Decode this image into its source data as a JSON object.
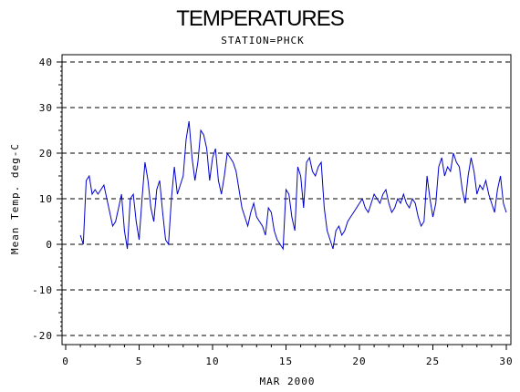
{
  "chart_data": {
    "type": "line",
    "title": "TEMPERATURES",
    "subtitle": "STATION=PHCK",
    "xlabel": "MAR 2000",
    "ylabel": "Mean Temp. deg-C",
    "xlim": [
      0,
      30
    ],
    "ylim": [
      -21,
      41
    ],
    "xticks": [
      0,
      5,
      10,
      15,
      20,
      25,
      30
    ],
    "yticks": [
      -20,
      -10,
      0,
      10,
      20,
      30,
      40
    ],
    "grid": "horizontal dashed",
    "line_color": "#0000cc",
    "series": [
      {
        "x": [
          1.0,
          1.2,
          1.4,
          1.6,
          1.8,
          2.0,
          2.2,
          2.4,
          2.6,
          2.8,
          3.0,
          3.2,
          3.4,
          3.6,
          3.8,
          4.0,
          4.2,
          4.4,
          4.6,
          4.8,
          5.0,
          5.2,
          5.4,
          5.6,
          5.8,
          6.0,
          6.2,
          6.4,
          6.6,
          6.8,
          7.0,
          7.2,
          7.4,
          7.6,
          7.8,
          8.0,
          8.2,
          8.4,
          8.6,
          8.8,
          9.0,
          9.2,
          9.4,
          9.6,
          9.8,
          10.0,
          10.2,
          10.4,
          10.6,
          10.8,
          11.0,
          11.2,
          11.4,
          11.6,
          11.8,
          12.0,
          12.2,
          12.4,
          12.6,
          12.8,
          13.0,
          13.2,
          13.4,
          13.6,
          13.8,
          14.0,
          14.2,
          14.4,
          14.6,
          14.8,
          15.0,
          15.2,
          15.4,
          15.6,
          15.8,
          16.0,
          16.2,
          16.4,
          16.6,
          16.8,
          17.0,
          17.2,
          17.4,
          17.6,
          17.8,
          18.0,
          18.2,
          18.4,
          18.6,
          18.8,
          19.0,
          19.2,
          19.4,
          19.6,
          19.8,
          20.0,
          20.2,
          20.4,
          20.6,
          20.8,
          21.0,
          21.2,
          21.4,
          21.6,
          21.8,
          22.0,
          22.2,
          22.4,
          22.6,
          22.8,
          23.0,
          23.2,
          23.4,
          23.6,
          23.8,
          24.0,
          24.2,
          24.4,
          24.6,
          24.8,
          25.0,
          25.2,
          25.4,
          25.6,
          25.8,
          26.0,
          26.2,
          26.4,
          26.6,
          26.8,
          27.0,
          27.2,
          27.4,
          27.6,
          27.8,
          28.0,
          28.2,
          28.4,
          28.6,
          28.8,
          29.0,
          29.2,
          29.4,
          29.6,
          29.8,
          30.0
        ],
        "values": [
          2,
          0,
          14,
          15,
          11,
          12,
          11,
          12,
          13,
          10,
          7,
          4,
          5,
          8,
          11,
          3,
          -1,
          10,
          11,
          5,
          1,
          10,
          18,
          14,
          8,
          5,
          12,
          14,
          7,
          1,
          0,
          10,
          17,
          11,
          13,
          15,
          23,
          27,
          19,
          14,
          18,
          25,
          24,
          21,
          14,
          19,
          21,
          14,
          11,
          15,
          20,
          19,
          18,
          16,
          12,
          8,
          6,
          4,
          7,
          9,
          6,
          5,
          4,
          2,
          8,
          7,
          3,
          1,
          0,
          -1,
          12,
          11,
          6,
          3,
          17,
          15,
          8,
          18,
          19,
          16,
          15,
          17,
          18,
          8,
          3,
          1,
          -1,
          3,
          4,
          2,
          3,
          5,
          6,
          7,
          8,
          9,
          10,
          8,
          7,
          9,
          11,
          10,
          9,
          11,
          12,
          9,
          7,
          8,
          10,
          9,
          11,
          9,
          8,
          10,
          9,
          6,
          4,
          5,
          15,
          10,
          6,
          9,
          17,
          19,
          15,
          17,
          16,
          20,
          18,
          17,
          12,
          9,
          15,
          19,
          16,
          11,
          13,
          12,
          14,
          11,
          9,
          7,
          12,
          15,
          9,
          7
        ]
      }
    ]
  }
}
